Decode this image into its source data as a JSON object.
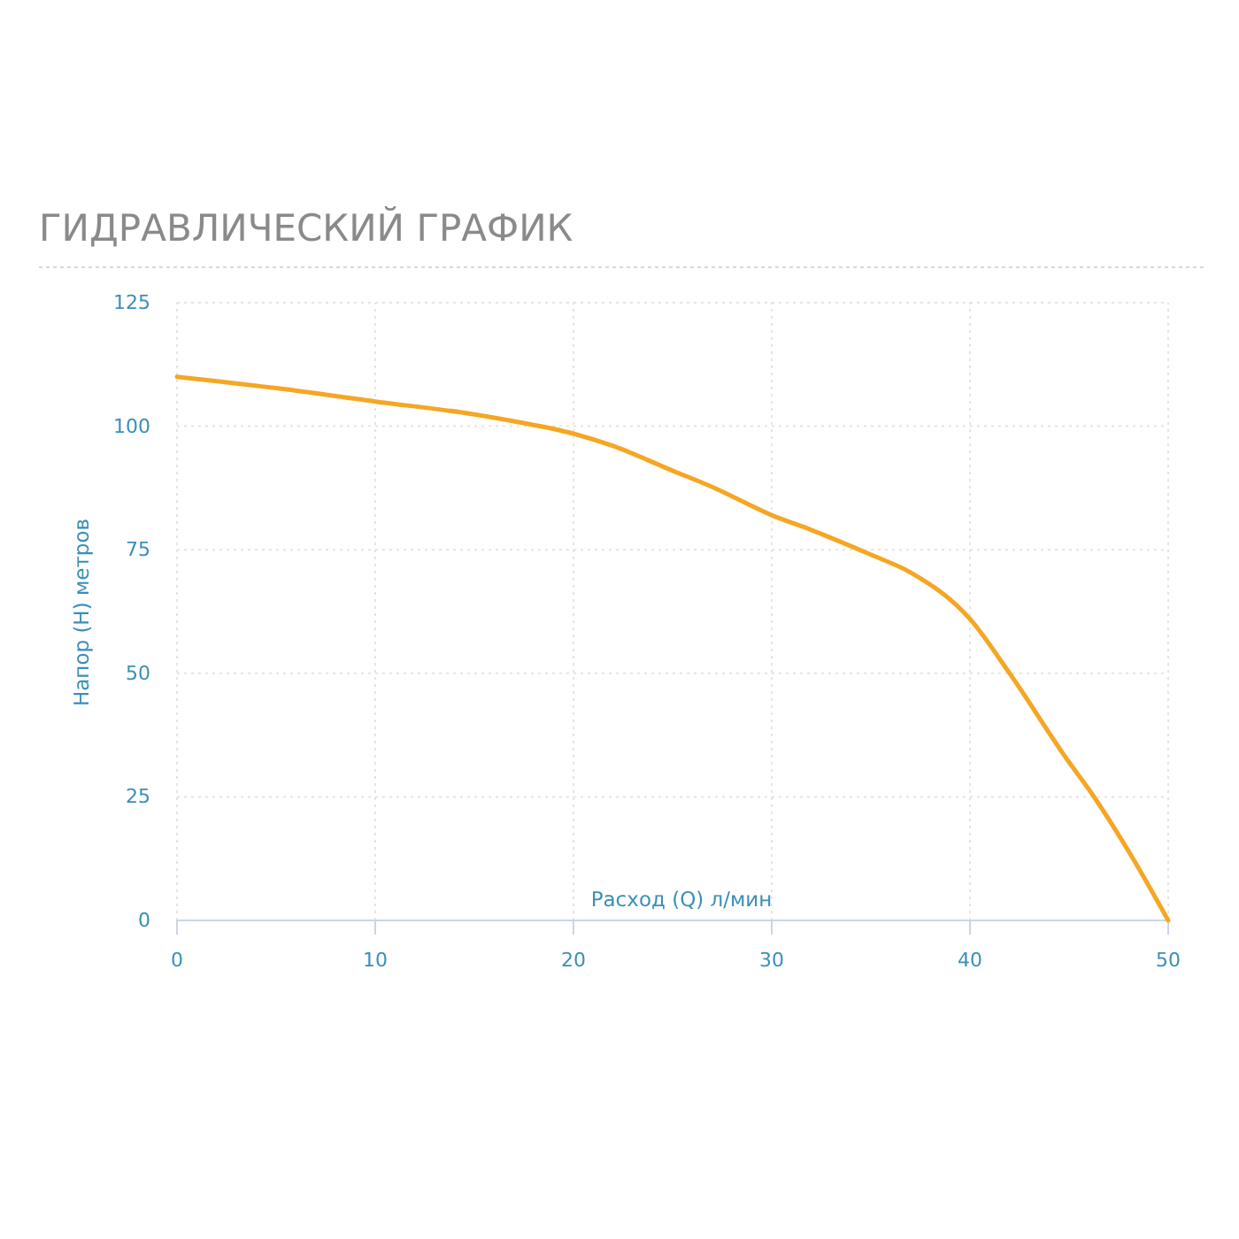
{
  "chart_data": {
    "type": "line",
    "title": "ГИДРАВЛИЧЕСКИЙ ГРАФИК",
    "xlabel": "Расход (Q) л/мин",
    "ylabel": "Напор (H) метров",
    "x": [
      0,
      5,
      10,
      15,
      17,
      20,
      22,
      25,
      27,
      30,
      32,
      35,
      37,
      40,
      42,
      45,
      46,
      48,
      50
    ],
    "series": [
      {
        "color": "#f5a623",
        "values": [
          110,
          107.7,
          105,
          102.4,
          101,
          98.5,
          96,
          91,
          87.7,
          82,
          79,
          74,
          70.4,
          61,
          50,
          32,
          26.5,
          14,
          0
        ]
      }
    ],
    "xlim": [
      0,
      50
    ],
    "xticks": [
      0,
      10,
      20,
      30,
      40,
      50
    ],
    "ylim": [
      0,
      125
    ],
    "yticks": [
      0,
      25,
      50,
      75,
      100,
      125
    ],
    "grid": true,
    "marker": "none",
    "line_style": "solid"
  }
}
